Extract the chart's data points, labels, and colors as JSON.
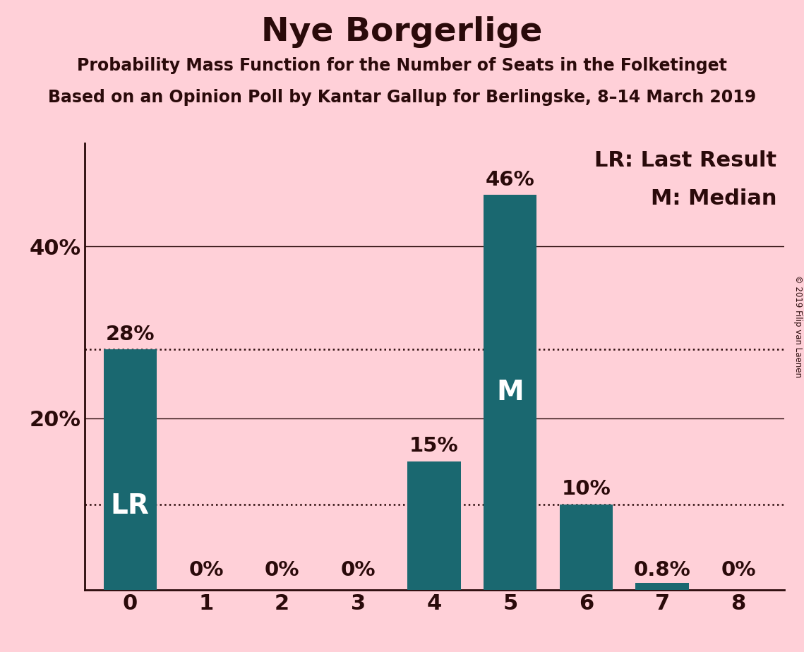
{
  "title": "Nye Borgerlige",
  "subtitle1": "Probability Mass Function for the Number of Seats in the Folketinget",
  "subtitle2": "Based on an Opinion Poll by Kantar Gallup for Berlingske, 8–14 March 2019",
  "copyright": "© 2019 Filip van Laenen",
  "categories": [
    0,
    1,
    2,
    3,
    4,
    5,
    6,
    7,
    8
  ],
  "values": [
    28,
    0,
    0,
    0,
    15,
    46,
    10,
    0.8,
    0
  ],
  "bar_color": "#1a6870",
  "background_color": "#FFD0D8",
  "text_color": "#2a0a0a",
  "white": "#ffffff",
  "labels": [
    "28%",
    "0%",
    "0%",
    "0%",
    "15%",
    "46%",
    "10%",
    "0.8%",
    "0%"
  ],
  "inside_bar_labels": {
    "0": "LR",
    "5": "M"
  },
  "dotted_lines": [
    28,
    10
  ],
  "solid_lines": [
    20,
    40
  ],
  "ylim": [
    0,
    52
  ],
  "legend_lines": [
    "LR: Last Result",
    "M: Median"
  ],
  "title_fontsize": 34,
  "subtitle_fontsize": 17,
  "axis_tick_fontsize": 22,
  "bar_label_fontsize": 21,
  "inside_label_fontsize": 28,
  "legend_fontsize": 22
}
